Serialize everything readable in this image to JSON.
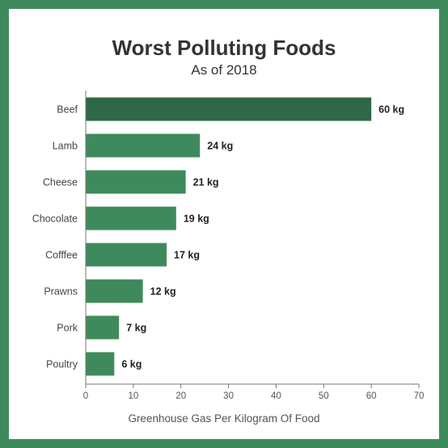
{
  "chart_data": {
    "type": "bar",
    "orientation": "horizontal",
    "title": "Worst Polluting Foods",
    "subtitle": "As of 2018",
    "xlabel": "Greenhouse Gas Per Kilogram Of Food",
    "ylabel": "",
    "categories": [
      "Beef",
      "Lamb",
      "Cheese",
      "Chocolate",
      "Cofffee",
      "Prawns",
      "Pork",
      "Poultry"
    ],
    "values": [
      60,
      24,
      21,
      19,
      17,
      12,
      7,
      6
    ],
    "value_labels": [
      "60 kg",
      "24 kg",
      "21 kg",
      "19 kg",
      "17 kg",
      "12 kg",
      "7 kg",
      "6 kg"
    ],
    "xlim": [
      0,
      70
    ],
    "xticks": [
      0,
      10,
      20,
      30,
      40,
      50,
      60,
      70
    ],
    "grid": false,
    "legend": "none",
    "colors": {
      "bar": "#3f8a5c",
      "highlight_bar": "#2f6848",
      "frame": "#3f8a5c"
    }
  }
}
